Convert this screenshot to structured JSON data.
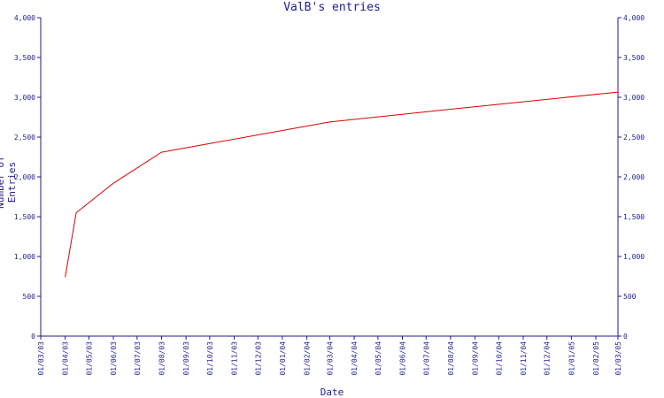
{
  "chart_data": {
    "type": "line",
    "title": "ValB's entries",
    "xlabel": "Date",
    "ylabel": "Number of Entries",
    "x_ticks": [
      "01/03/03",
      "01/04/03",
      "01/05/03",
      "01/06/03",
      "01/07/03",
      "01/08/03",
      "01/09/03",
      "01/10/03",
      "01/11/03",
      "01/12/03",
      "01/01/04",
      "01/02/04",
      "01/03/04",
      "01/04/04",
      "01/05/04",
      "01/06/04",
      "01/07/04",
      "01/08/04",
      "01/09/04",
      "01/10/04",
      "01/11/04",
      "01/12/04",
      "01/01/05",
      "01/02/05",
      "01/03/05"
    ],
    "y_ticks": [
      "0",
      "500",
      "1,000",
      "1,500",
      "2,000",
      "2,500",
      "3,000",
      "3,500",
      "4,000"
    ],
    "ylim": [
      0,
      4000
    ],
    "grid": false,
    "legend": "none",
    "series": [
      {
        "color": "#dd0000",
        "x": [
          "2003-04-01",
          "2003-04-15",
          "2003-06-01",
          "2003-08-01",
          "2004-03-01",
          "2004-08-01",
          "2005-03-01"
        ],
        "y": [
          740,
          1550,
          1920,
          2310,
          2690,
          2850,
          3065
        ]
      }
    ]
  },
  "colors": {
    "axis": "#1c1c8c",
    "line": "#dd0000",
    "background": "#ffffff"
  }
}
